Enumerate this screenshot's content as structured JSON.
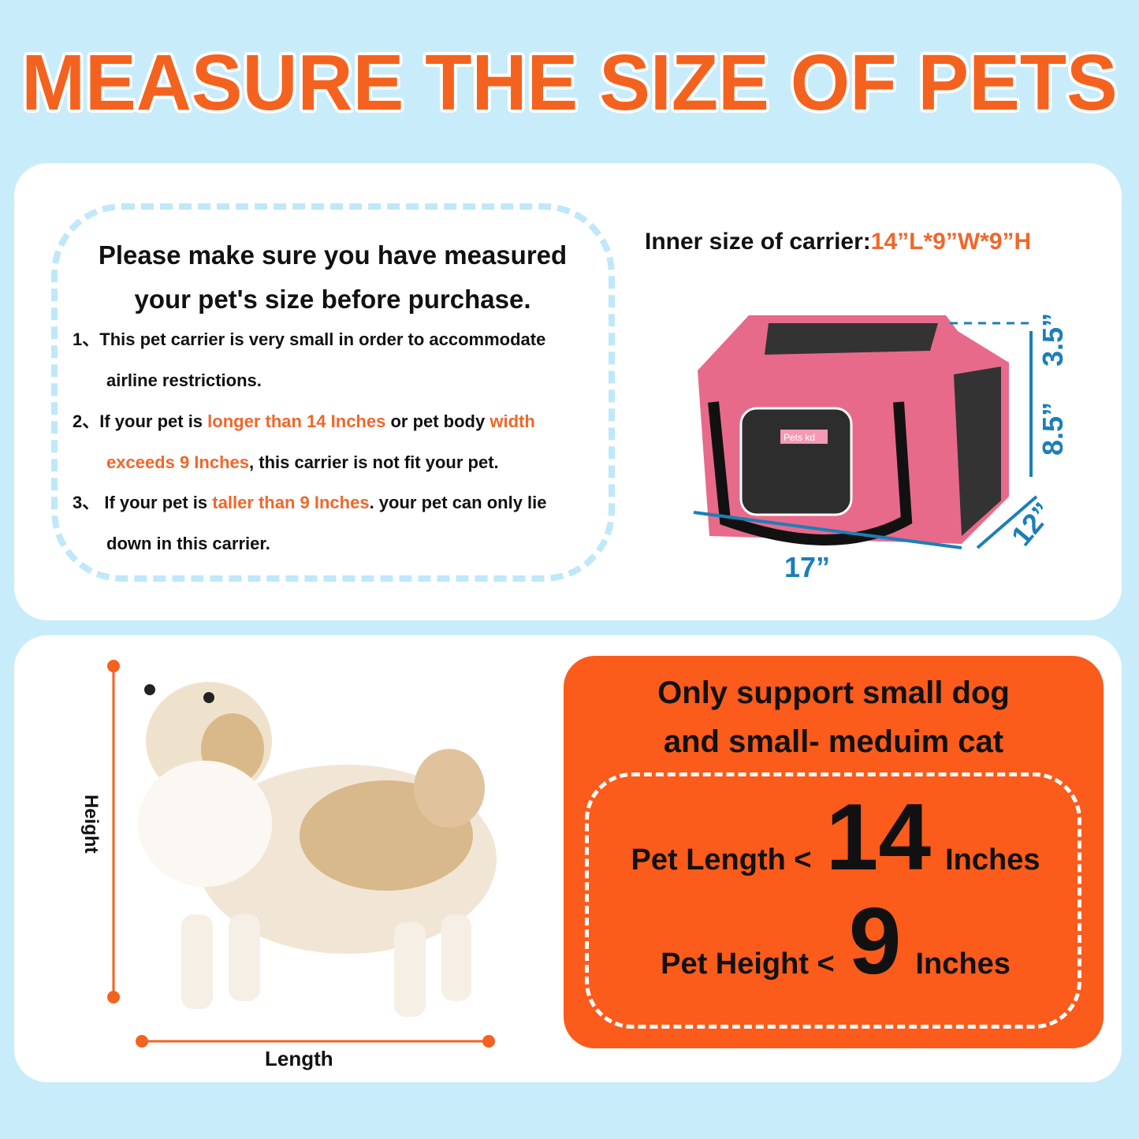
{
  "title": "MEASURE THE SIZE OF PETS",
  "notice": {
    "heading": [
      "Please make sure you have measured",
      "your pet's size before purchase."
    ],
    "items": [
      {
        "num": "1、",
        "line1": [
          {
            "t": "This pet carrier is very small in order  to accommodate",
            "hl": false
          }
        ],
        "line2": [
          {
            "t": "airline restrictions.",
            "hl": false
          }
        ]
      },
      {
        "num": "2、",
        "line1": [
          {
            "t": "If your pet is ",
            "hl": false
          },
          {
            "t": "longer than 14 Inches",
            "hl": true
          },
          {
            "t": " or pet body ",
            "hl": false
          },
          {
            "t": "width",
            "hl": true
          }
        ],
        "line2": [
          {
            "t": "exceeds 9 Inches",
            "hl": true
          },
          {
            "t": ", this carrier is not fit your pet.",
            "hl": false
          }
        ]
      },
      {
        "num": "3、",
        "line1": [
          {
            "t": " If your pet is ",
            "hl": false
          },
          {
            "t": "taller than 9 Inches",
            "hl": true
          },
          {
            "t": ". your pet can only lie",
            "hl": false
          }
        ],
        "line2": [
          {
            "t": "down in this carrier.",
            "hl": false
          }
        ]
      }
    ]
  },
  "carrier": {
    "label": "Inner size of carrier:",
    "size": "14”L*9”W*9”H",
    "brand": "Pets kd",
    "dims": {
      "length": "17”",
      "width": "12”",
      "height": "8.5”",
      "top": "3.5”"
    }
  },
  "pet": {
    "height_label": "Height",
    "length_label": "Length"
  },
  "support": {
    "title": [
      "Only support small dog",
      "and small- meduim cat"
    ],
    "length_label": "Pet Length <",
    "length_value": "14",
    "height_label": "Pet Height <",
    "height_value": "9",
    "unit": "Inches"
  },
  "colors": {
    "accent": "#f4621f",
    "background": "#c9ecfb",
    "dimension": "#1b7fb8",
    "carrier": "#ec6b8a"
  }
}
